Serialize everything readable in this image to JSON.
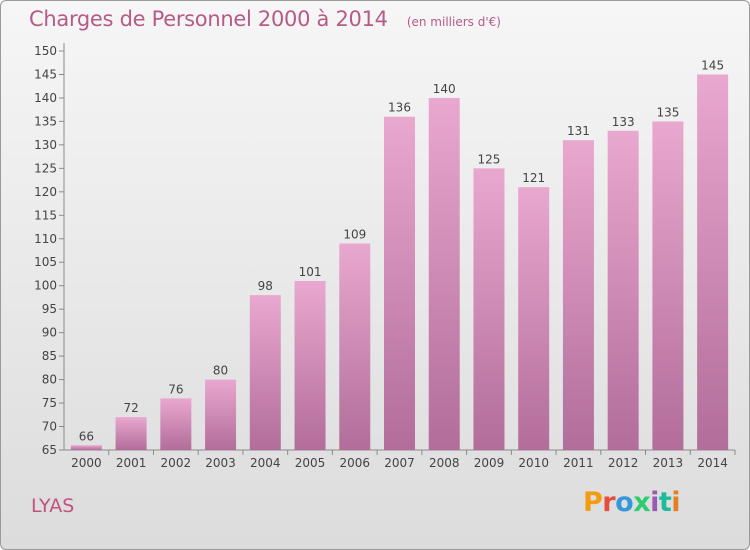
{
  "header": {
    "title": "Charges de Personnel 2000 à 2014",
    "unit": "(en milliers d'€)"
  },
  "footer": {
    "commune": "LYAS",
    "logo": "Proxiti",
    "logo_colors": [
      "#f39c12",
      "#e74c3c",
      "#3498db",
      "#2ecc71",
      "#9b59b6",
      "#1abc9c",
      "#e67e22"
    ]
  },
  "colors": {
    "bar_top": "#e9a8cf",
    "bar_bottom": "#b26d9a",
    "text": "#444444"
  },
  "chart_data": {
    "type": "bar",
    "categories": [
      "2000",
      "2001",
      "2002",
      "2003",
      "2004",
      "2005",
      "2006",
      "2007",
      "2008",
      "2009",
      "2010",
      "2011",
      "2012",
      "2013",
      "2014"
    ],
    "values": [
      66,
      72,
      76,
      80,
      98,
      101,
      109,
      136,
      140,
      125,
      121,
      131,
      133,
      135,
      145
    ],
    "ylim": [
      65,
      150
    ],
    "yticks": [
      65,
      70,
      75,
      80,
      85,
      90,
      95,
      100,
      105,
      110,
      115,
      120,
      125,
      130,
      135,
      140,
      145,
      150
    ],
    "grid": false,
    "data_labels": true
  }
}
